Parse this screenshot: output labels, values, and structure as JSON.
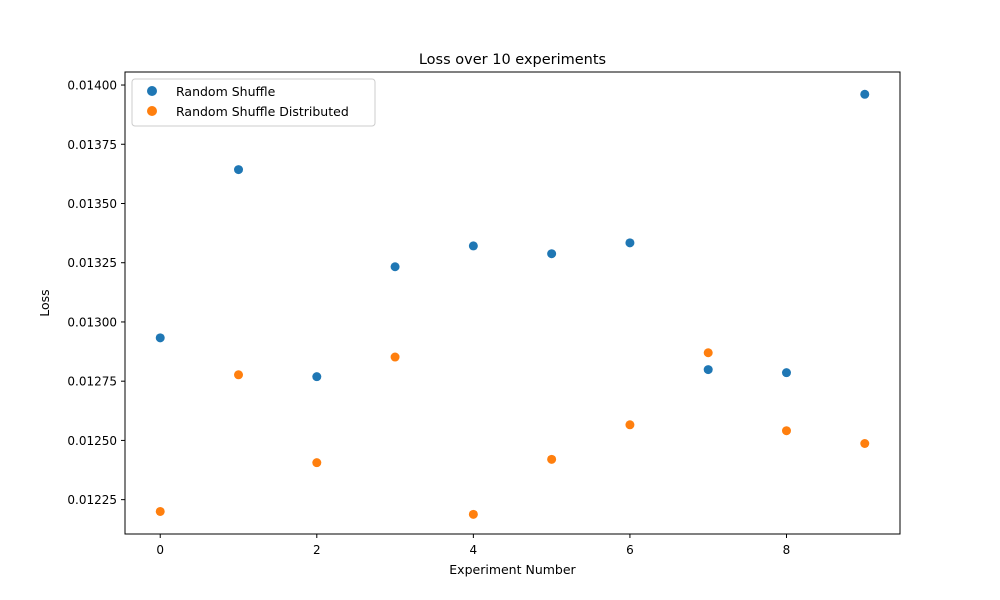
{
  "chart_data": {
    "type": "scatter",
    "title": "Loss over 10 experiments",
    "xlabel": "Experiment Number",
    "ylabel": "Loss",
    "xlim": [
      -0.45,
      9.45
    ],
    "ylim": [
      0.012105,
      0.014055
    ],
    "xticks": [
      0,
      2,
      4,
      6,
      8
    ],
    "xtick_labels": [
      "0",
      "2",
      "4",
      "6",
      "8"
    ],
    "yticks": [
      0.01225,
      0.0125,
      0.01275,
      0.013,
      0.01325,
      0.0135,
      0.01375,
      0.014
    ],
    "ytick_labels": [
      "0.01225",
      "0.01250",
      "0.01275",
      "0.01300",
      "0.01325",
      "0.01350",
      "0.01375",
      "0.01400"
    ],
    "grid": false,
    "legend_position": "top-left",
    "series": [
      {
        "name": "Random Shuffle",
        "color": "#1f77b4",
        "x": [
          0,
          1,
          2,
          3,
          4,
          5,
          6,
          7,
          8,
          9
        ],
        "y": [
          0.012933,
          0.013643,
          0.012769,
          0.013233,
          0.013321,
          0.013288,
          0.013334,
          0.012799,
          0.012786,
          0.013961
        ]
      },
      {
        "name": "Random Shuffle Distributed",
        "color": "#ff7f0e",
        "x": [
          0,
          1,
          2,
          3,
          4,
          5,
          6,
          7,
          8,
          9
        ],
        "y": [
          0.0122,
          0.012777,
          0.012406,
          0.012852,
          0.012188,
          0.01242,
          0.012566,
          0.01287,
          0.012541,
          0.012487
        ]
      }
    ]
  }
}
